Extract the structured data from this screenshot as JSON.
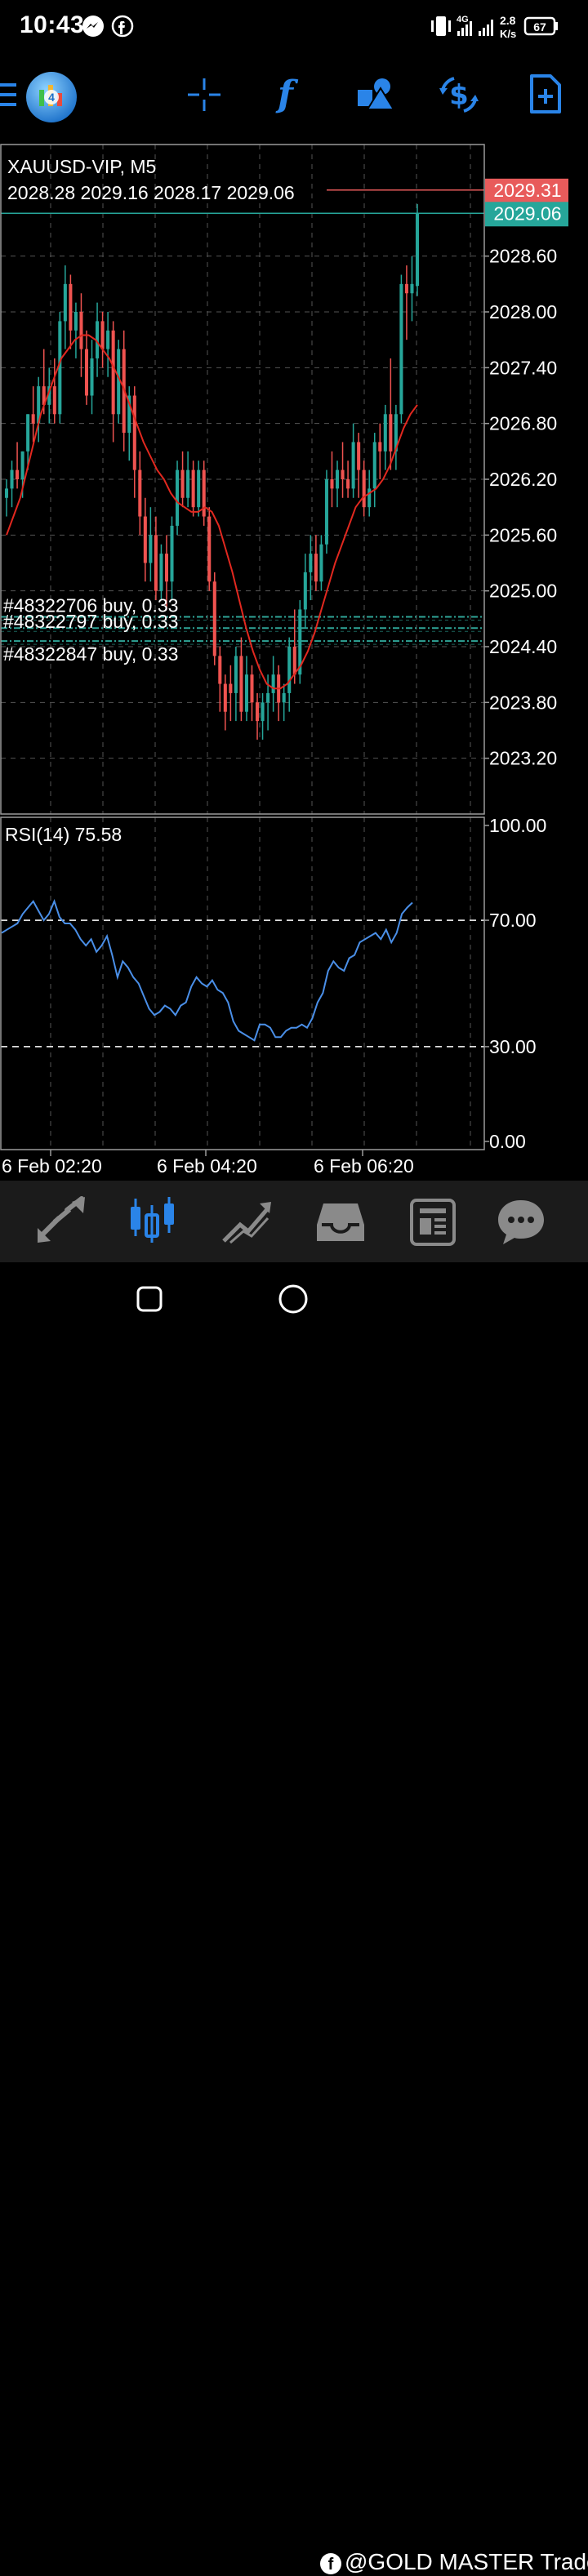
{
  "status_bar": {
    "time": "10:43",
    "network_type": "4G",
    "speed_value": "2.8",
    "speed_unit": "K/s",
    "battery": "67",
    "icons": [
      "messenger-icon",
      "facebook-icon",
      "vibrate-icon",
      "signal-icon",
      "battery-icon"
    ]
  },
  "toolbar": {
    "icons": [
      "menu-icon",
      "metatrader-logo-icon",
      "crosshair-icon",
      "indicators-icon",
      "objects-icon",
      "trade-icon",
      "new-order-icon"
    ],
    "accent": "#2a84e8"
  },
  "chart": {
    "symbol_timeframe": "XAUUSD-VIP, M5",
    "ohlc": "2028.28 2029.16 2028.17 2029.06",
    "ask_label": "2029.31",
    "bid_label": "2029.06",
    "ask_color": "#e85b5b",
    "bid_color": "#26a69a",
    "orders": [
      "#48322706 buy, 0.33",
      "#48322797 buy, 0.33",
      "#48322847 buy, 0.33"
    ],
    "rsi_label": "RSI(14) 75.58",
    "time_labels": [
      "6 Feb 02:20",
      "6 Feb 04:20",
      "6 Feb 06:20"
    ]
  },
  "chart_data": {
    "type": "candlestick",
    "price_axis_labels": [
      "2028.60",
      "2028.00",
      "2027.40",
      "2026.80",
      "2026.20",
      "2025.60",
      "2025.00",
      "2024.40",
      "2023.80",
      "2023.20"
    ],
    "price_axis_values": [
      2028.6,
      2028.0,
      2027.4,
      2026.8,
      2026.2,
      2025.6,
      2025.0,
      2024.4,
      2023.8,
      2023.2
    ],
    "ylim": [
      2022.6,
      2029.8
    ],
    "ask": 2029.31,
    "bid": 2029.06,
    "order_prices": [
      2024.72,
      2024.6,
      2024.46
    ],
    "candles_ohlc": [
      [
        2026.0,
        2026.2,
        2025.8,
        2026.1
      ],
      [
        2026.1,
        2026.4,
        2025.9,
        2026.3
      ],
      [
        2026.3,
        2026.6,
        2026.1,
        2026.2
      ],
      [
        2026.2,
        2026.5,
        2026.0,
        2026.5
      ],
      [
        2026.5,
        2026.9,
        2026.3,
        2026.9
      ],
      [
        2026.9,
        2027.2,
        2026.6,
        2026.8
      ],
      [
        2026.8,
        2027.3,
        2026.6,
        2027.2
      ],
      [
        2027.2,
        2027.6,
        2026.9,
        2027.0
      ],
      [
        2027.0,
        2027.4,
        2026.8,
        2027.2
      ],
      [
        2027.2,
        2027.5,
        2026.8,
        2026.9
      ],
      [
        2026.9,
        2028.0,
        2026.8,
        2027.9
      ],
      [
        2027.9,
        2028.5,
        2027.6,
        2028.3
      ],
      [
        2028.3,
        2028.4,
        2027.6,
        2027.8
      ],
      [
        2027.8,
        2028.1,
        2027.5,
        2028.0
      ],
      [
        2028.0,
        2028.2,
        2027.3,
        2027.6
      ],
      [
        2027.6,
        2027.8,
        2027.0,
        2027.1
      ],
      [
        2027.1,
        2027.7,
        2026.9,
        2027.5
      ],
      [
        2027.5,
        2028.1,
        2027.3,
        2027.9
      ],
      [
        2027.9,
        2028.0,
        2027.4,
        2027.6
      ],
      [
        2027.6,
        2028.0,
        2027.3,
        2027.8
      ],
      [
        2027.8,
        2027.9,
        2026.6,
        2026.9
      ],
      [
        2026.9,
        2027.7,
        2026.8,
        2027.6
      ],
      [
        2027.6,
        2027.8,
        2026.5,
        2026.7
      ],
      [
        2026.7,
        2027.2,
        2026.4,
        2027.1
      ],
      [
        2027.1,
        2027.2,
        2026.0,
        2026.3
      ],
      [
        2026.3,
        2026.5,
        2025.6,
        2025.8
      ],
      [
        2025.8,
        2026.0,
        2025.1,
        2025.3
      ],
      [
        2025.3,
        2025.9,
        2025.1,
        2025.6
      ],
      [
        2025.6,
        2025.8,
        2024.9,
        2025.0
      ],
      [
        2025.0,
        2025.5,
        2024.9,
        2025.4
      ],
      [
        2025.4,
        2025.6,
        2024.8,
        2025.1
      ],
      [
        2025.1,
        2025.8,
        2024.9,
        2025.7
      ],
      [
        2025.7,
        2026.4,
        2025.6,
        2026.3
      ],
      [
        2026.3,
        2026.5,
        2025.9,
        2026.0
      ],
      [
        2026.0,
        2026.5,
        2025.9,
        2026.3
      ],
      [
        2026.3,
        2026.4,
        2025.8,
        2025.9
      ],
      [
        2025.9,
        2026.4,
        2025.8,
        2026.3
      ],
      [
        2026.3,
        2026.4,
        2025.7,
        2025.8
      ],
      [
        2025.8,
        2025.9,
        2025.0,
        2025.1
      ],
      [
        2025.1,
        2025.2,
        2024.2,
        2024.3
      ],
      [
        2024.3,
        2024.4,
        2023.7,
        2024.0
      ],
      [
        2024.0,
        2024.1,
        2023.5,
        2023.7
      ],
      [
        2024.0,
        2024.2,
        2023.6,
        2023.9
      ],
      [
        2023.9,
        2024.4,
        2023.6,
        2024.3
      ],
      [
        2024.3,
        2024.5,
        2023.6,
        2023.7
      ],
      [
        2023.7,
        2024.3,
        2023.6,
        2024.1
      ],
      [
        2024.1,
        2024.2,
        2023.6,
        2023.8
      ],
      [
        2023.8,
        2023.9,
        2023.4,
        2023.6
      ],
      [
        2023.6,
        2023.9,
        2023.4,
        2023.8
      ],
      [
        2023.8,
        2024.1,
        2023.5,
        2023.9
      ],
      [
        2023.9,
        2024.3,
        2023.7,
        2024.1
      ],
      [
        2024.1,
        2024.2,
        2023.6,
        2023.8
      ],
      [
        2023.8,
        2024.0,
        2023.6,
        2023.9
      ],
      [
        2023.9,
        2024.5,
        2023.7,
        2024.4
      ],
      [
        2024.4,
        2024.8,
        2024.0,
        2024.1
      ],
      [
        2024.1,
        2024.9,
        2024.0,
        2024.8
      ],
      [
        2024.8,
        2025.4,
        2024.6,
        2025.2
      ],
      [
        2025.2,
        2025.6,
        2024.9,
        2025.4
      ],
      [
        2025.4,
        2025.6,
        2025.0,
        2025.1
      ],
      [
        2025.1,
        2025.6,
        2025.0,
        2025.5
      ],
      [
        2025.5,
        2026.3,
        2025.4,
        2026.2
      ],
      [
        2026.2,
        2026.5,
        2025.9,
        2026.1
      ],
      [
        2026.1,
        2026.4,
        2025.9,
        2026.3
      ],
      [
        2026.3,
        2026.6,
        2026.0,
        2026.2
      ],
      [
        2026.2,
        2026.4,
        2026.0,
        2026.1
      ],
      [
        2026.1,
        2026.8,
        2026.0,
        2026.6
      ],
      [
        2026.6,
        2026.7,
        2026.0,
        2026.3
      ],
      [
        2026.3,
        2026.4,
        2025.8,
        2025.9
      ],
      [
        2025.9,
        2026.3,
        2025.8,
        2026.1
      ],
      [
        2026.1,
        2026.7,
        2025.9,
        2026.6
      ],
      [
        2026.6,
        2026.8,
        2026.2,
        2026.5
      ],
      [
        2026.5,
        2027.0,
        2026.3,
        2026.9
      ],
      [
        2026.9,
        2027.5,
        2026.3,
        2026.5
      ],
      [
        2026.5,
        2027.0,
        2026.3,
        2026.9
      ],
      [
        2026.9,
        2028.4,
        2026.8,
        2028.3
      ],
      [
        2028.3,
        2028.5,
        2027.7,
        2028.2
      ],
      [
        2028.2,
        2028.6,
        2027.9,
        2028.3
      ],
      [
        2028.28,
        2029.16,
        2028.17,
        2029.06
      ]
    ],
    "ma_period_label": "",
    "moving_average": [
      2025.6,
      2025.8,
      2026.0,
      2026.3,
      2026.6,
      2026.9,
      2027.1,
      2027.3,
      2027.5,
      2027.6,
      2027.7,
      2027.75,
      2027.75,
      2027.7,
      2027.6,
      2027.5,
      2027.35,
      2027.2,
      2027.0,
      2026.8,
      2026.6,
      2026.45,
      2026.3,
      2026.2,
      2026.05,
      2025.95,
      2025.9,
      2025.85,
      2025.85,
      2025.9,
      2025.85,
      2025.7,
      2025.45,
      2025.2,
      2024.9,
      2024.6,
      2024.35,
      2024.15,
      2024.0,
      2023.95,
      2023.95,
      2024.0,
      2024.1,
      2024.2,
      2024.35,
      2024.55,
      2024.8,
      2025.05,
      2025.3,
      2025.5,
      2025.7,
      2025.9,
      2026.0,
      2026.05,
      2026.1,
      2026.2,
      2026.35,
      2026.55,
      2026.75,
      2026.9,
      2027.0
    ],
    "rsi": {
      "period": 14,
      "current": 75.58,
      "axis_labels": [
        "100.00",
        "70.00",
        "30.00",
        "0.00"
      ],
      "axis_values": [
        100,
        70,
        30,
        0
      ],
      "levels": [
        70,
        30
      ],
      "values": [
        66,
        67,
        68,
        69,
        72,
        74,
        76,
        73,
        70,
        72,
        76,
        71,
        69,
        69,
        67,
        64,
        62,
        64,
        60,
        62,
        65,
        59,
        52,
        57,
        55,
        52,
        50,
        46,
        42,
        40,
        41,
        43,
        42,
        40,
        43,
        44,
        49,
        52,
        50,
        49,
        51,
        48,
        47,
        44,
        38,
        35,
        34,
        33,
        32,
        37,
        37,
        36,
        33,
        33,
        35,
        36,
        36,
        37,
        36,
        39,
        44,
        47,
        54,
        57,
        55,
        54,
        58,
        59,
        63,
        64,
        65,
        66,
        64,
        67,
        63,
        66,
        72,
        74,
        75.58
      ]
    },
    "colors": {
      "bull": "#26a69a",
      "bear": "#ef5350",
      "ma": "#e2281f",
      "rsi": "#4a8fe8",
      "grid": "#555555",
      "order_line": "#2fa597"
    }
  },
  "bottom_nav": {
    "items": [
      "quotes-icon",
      "chart-icon",
      "trade-icon",
      "history-icon",
      "news-icon",
      "messages-icon"
    ],
    "active_index": 1
  },
  "watermark": {
    "text": "@GOLD MASTER Trader"
  }
}
